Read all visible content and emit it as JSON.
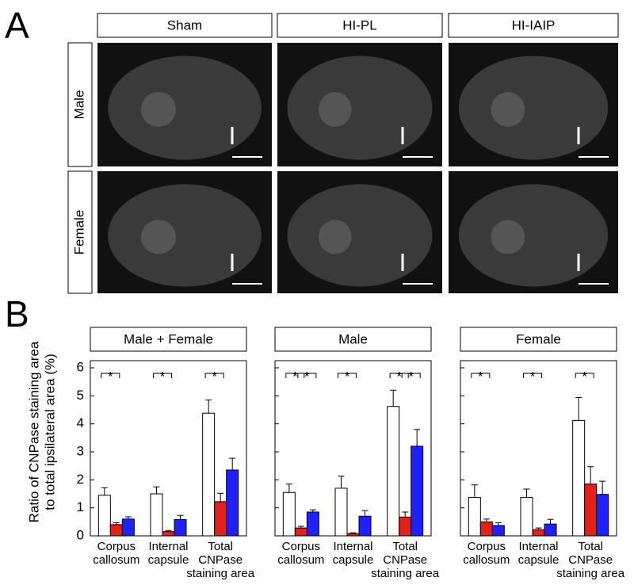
{
  "panel_a": {
    "label": "A",
    "columns": [
      "Sham",
      "HI-PL",
      "HI-IAIP"
    ],
    "rows": [
      "Male",
      "Female"
    ]
  },
  "panel_b": {
    "label": "B",
    "ylabel": [
      "Ratio of CNPase staining area",
      "to total ipsilateral area (%)"
    ]
  },
  "chart_data": [
    {
      "type": "bar",
      "title": "Male + Female",
      "categories": [
        [
          "Corpus",
          "callosum"
        ],
        [
          "Internal",
          "capsule"
        ],
        [
          "Total",
          "CNPase",
          "staining area"
        ]
      ],
      "series": [
        {
          "color": "#ffffff",
          "values": [
            1.45,
            1.5,
            4.38
          ],
          "errors": [
            0.27,
            0.25,
            0.47
          ]
        },
        {
          "color": "#e3201b",
          "values": [
            0.4,
            0.15,
            1.22
          ],
          "errors": [
            0.07,
            0.04,
            0.3
          ]
        },
        {
          "color": "#1f1fff",
          "values": [
            0.6,
            0.58,
            2.35
          ],
          "errors": [
            0.08,
            0.15,
            0.42
          ]
        }
      ],
      "significance": [
        {
          "text": "*",
          "category": 0,
          "between": [
            0,
            1
          ]
        },
        {
          "text": "*",
          "category": 1,
          "between": [
            0,
            1
          ]
        },
        {
          "text": "*",
          "category": 2,
          "between": [
            0,
            1
          ]
        }
      ],
      "ylim": [
        0,
        6
      ],
      "yticks": [
        0,
        1,
        2,
        3,
        4,
        5,
        6
      ]
    },
    {
      "type": "bar",
      "title": "Male",
      "categories": [
        [
          "Corpus",
          "callosum"
        ],
        [
          "Internal",
          "capsule"
        ],
        [
          "Total",
          "CNPase",
          "staining area"
        ]
      ],
      "series": [
        {
          "color": "#ffffff",
          "values": [
            1.55,
            1.7,
            4.62
          ],
          "errors": [
            0.3,
            0.43,
            0.58
          ]
        },
        {
          "color": "#e3201b",
          "values": [
            0.28,
            0.08,
            0.67
          ],
          "errors": [
            0.06,
            0.03,
            0.18
          ]
        },
        {
          "color": "#1f1fff",
          "values": [
            0.85,
            0.7,
            3.2
          ],
          "errors": [
            0.08,
            0.2,
            0.6
          ]
        }
      ],
      "significance": [
        {
          "text": "*",
          "category": 0,
          "between": [
            0,
            1
          ]
        },
        {
          "text": "*",
          "category": 0,
          "between": [
            1,
            2
          ]
        },
        {
          "text": "*",
          "category": 1,
          "between": [
            0,
            1
          ]
        },
        {
          "text": "*",
          "category": 2,
          "between": [
            0,
            1
          ]
        },
        {
          "text": "*",
          "category": 2,
          "between": [
            1,
            2
          ]
        }
      ],
      "ylim": [
        0,
        6
      ],
      "yticks": [
        0,
        1,
        2,
        3,
        4,
        5,
        6
      ]
    },
    {
      "type": "bar",
      "title": "Female",
      "categories": [
        [
          "Corpus",
          "callosum"
        ],
        [
          "Internal",
          "capsule"
        ],
        [
          "Total",
          "CNPase",
          "staining area"
        ]
      ],
      "series": [
        {
          "color": "#ffffff",
          "values": [
            1.37,
            1.37,
            4.12
          ],
          "errors": [
            0.45,
            0.3,
            0.82
          ]
        },
        {
          "color": "#e3201b",
          "values": [
            0.5,
            0.22,
            1.85
          ],
          "errors": [
            0.1,
            0.06,
            0.62
          ]
        },
        {
          "color": "#1f1fff",
          "values": [
            0.37,
            0.42,
            1.48
          ],
          "errors": [
            0.1,
            0.17,
            0.47
          ]
        }
      ],
      "significance": [
        {
          "text": "*",
          "category": 0,
          "between": [
            0,
            1
          ]
        },
        {
          "text": "*",
          "category": 1,
          "between": [
            0,
            1
          ]
        },
        {
          "text": "*",
          "category": 2,
          "between": [
            0,
            1
          ]
        }
      ],
      "ylim": [
        0,
        6
      ],
      "yticks": [
        0,
        1,
        2,
        3,
        4,
        5,
        6
      ]
    }
  ]
}
